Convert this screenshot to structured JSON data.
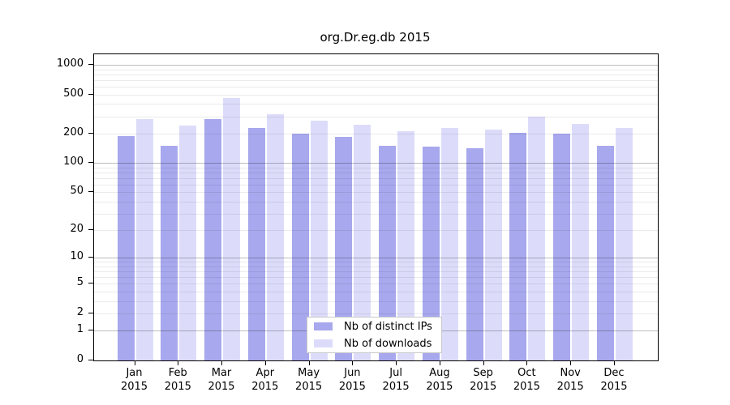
{
  "chart_data": {
    "type": "bar",
    "title": "org.Dr.eg.db 2015",
    "categories": [
      "Jan",
      "Feb",
      "Mar",
      "Apr",
      "May",
      "Jun",
      "Jul",
      "Aug",
      "Sep",
      "Oct",
      "Nov",
      "Dec"
    ],
    "category_year": "2015",
    "series": [
      {
        "name": "Nb of distinct IPs",
        "color": "#a8a8ee",
        "values": [
          187,
          151,
          280,
          226,
          201,
          184,
          149,
          146,
          141,
          203,
          200,
          149
        ]
      },
      {
        "name": "Nb of downloads",
        "color": "#dcdcfa",
        "values": [
          280,
          241,
          458,
          317,
          269,
          244,
          210,
          227,
          218,
          296,
          251,
          227
        ]
      }
    ],
    "y_axis": {
      "scale": "log1p",
      "ticks": [
        0,
        1,
        2,
        5,
        10,
        20,
        50,
        100,
        200,
        500,
        1000
      ],
      "max": 1000
    },
    "grid": {
      "show": true,
      "minor_values": [
        2,
        3,
        4,
        5,
        6,
        7,
        8,
        9,
        20,
        30,
        40,
        50,
        60,
        70,
        80,
        90,
        200,
        300,
        400,
        500,
        600,
        700,
        800,
        900
      ],
      "major_values": [
        1,
        10,
        100,
        1000
      ]
    },
    "legend": {
      "position": "inside-bottom-center"
    }
  }
}
